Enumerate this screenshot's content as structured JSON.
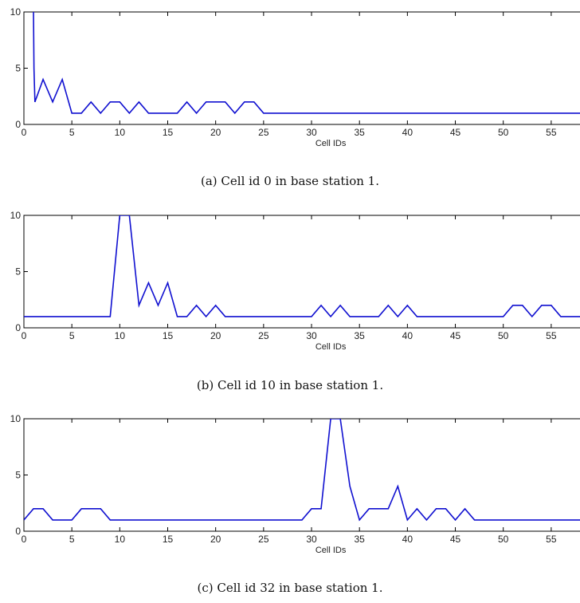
{
  "chart_data": [
    {
      "type": "line",
      "caption": "(a)  Cell id 0 in base station 1.",
      "xlabel": "Cell IDs",
      "ylabel": "",
      "xlim": [
        0,
        59
      ],
      "ylim": [
        0,
        10
      ],
      "xticks": [
        0,
        5,
        10,
        15,
        20,
        25,
        30,
        35,
        40,
        45,
        50,
        55
      ],
      "yticks": [
        0,
        5,
        10
      ],
      "color": "#1010d0",
      "x": [
        1,
        1.05,
        1.15,
        2,
        3,
        4,
        5,
        6,
        7,
        8,
        9,
        10,
        11,
        12,
        13,
        14,
        15,
        16,
        17,
        18,
        19,
        20,
        21,
        22,
        23,
        24,
        25,
        26,
        27,
        28,
        29,
        30,
        31,
        32,
        33,
        34,
        35,
        36,
        37,
        38,
        39,
        40,
        41,
        42,
        43,
        44,
        45,
        46,
        47,
        48,
        49,
        50,
        51,
        52,
        53,
        54,
        55,
        56,
        57,
        58,
        59
      ],
      "y": [
        10,
        5,
        2,
        4,
        2,
        4,
        1,
        1,
        2,
        1,
        2,
        2,
        1,
        2,
        1,
        1,
        1,
        1,
        2,
        1,
        2,
        2,
        2,
        1,
        2,
        2,
        1,
        1,
        1,
        1,
        1,
        1,
        1,
        1,
        1,
        1,
        1,
        1,
        1,
        1,
        1,
        1,
        1,
        1,
        1,
        1,
        1,
        1,
        1,
        1,
        1,
        1,
        1,
        1,
        1,
        1,
        1,
        1,
        1,
        1,
        1
      ]
    },
    {
      "type": "line",
      "caption": "(b)  Cell id 10 in base station 1.",
      "xlabel": "Cell IDs",
      "ylabel": "",
      "xlim": [
        0,
        59
      ],
      "ylim": [
        0,
        10
      ],
      "xticks": [
        0,
        5,
        10,
        15,
        20,
        25,
        30,
        35,
        40,
        45,
        50,
        55
      ],
      "yticks": [
        0,
        5,
        10
      ],
      "color": "#1010d0",
      "x": [
        0,
        1,
        2,
        3,
        4,
        5,
        6,
        7,
        8,
        9,
        10,
        11,
        12,
        13,
        14,
        15,
        16,
        17,
        18,
        19,
        20,
        21,
        22,
        23,
        24,
        25,
        26,
        27,
        28,
        29,
        30,
        31,
        32,
        33,
        34,
        35,
        36,
        37,
        38,
        39,
        40,
        41,
        42,
        43,
        44,
        45,
        46,
        47,
        48,
        49,
        50,
        51,
        52,
        53,
        54,
        55,
        56,
        57,
        58,
        59
      ],
      "y": [
        1,
        1,
        1,
        1,
        1,
        1,
        1,
        1,
        1,
        1,
        10,
        10,
        2,
        4,
        2,
        4,
        1,
        1,
        2,
        1,
        2,
        1,
        1,
        1,
        1,
        1,
        1,
        1,
        1,
        1,
        1,
        2,
        1,
        2,
        1,
        1,
        1,
        1,
        2,
        1,
        2,
        1,
        1,
        1,
        1,
        1,
        1,
        1,
        1,
        1,
        1,
        2,
        2,
        1,
        2,
        2,
        1,
        1,
        1,
        1
      ]
    },
    {
      "type": "line",
      "caption": "(c)  Cell id 32 in base station 1.",
      "xlabel": "Cell IDs",
      "ylabel": "",
      "xlim": [
        0,
        59
      ],
      "ylim": [
        0,
        10
      ],
      "xticks": [
        0,
        5,
        10,
        15,
        20,
        25,
        30,
        35,
        40,
        45,
        50,
        55
      ],
      "yticks": [
        0,
        5,
        10
      ],
      "color": "#1010d0",
      "x": [
        0,
        1,
        2,
        3,
        4,
        5,
        6,
        7,
        8,
        9,
        10,
        11,
        12,
        13,
        14,
        15,
        16,
        17,
        18,
        19,
        20,
        21,
        22,
        23,
        24,
        25,
        26,
        27,
        28,
        29,
        30,
        31,
        32,
        33,
        34,
        35,
        36,
        37,
        38,
        39,
        40,
        41,
        42,
        43,
        44,
        45,
        46,
        47,
        48,
        49,
        50,
        51,
        52,
        53,
        54,
        55,
        56,
        57,
        58,
        59
      ],
      "y": [
        1,
        2,
        2,
        1,
        1,
        1,
        2,
        2,
        2,
        1,
        1,
        1,
        1,
        1,
        1,
        1,
        1,
        1,
        1,
        1,
        1,
        1,
        1,
        1,
        1,
        1,
        1,
        1,
        1,
        1,
        2,
        2,
        10,
        10,
        4,
        1,
        2,
        2,
        2,
        4,
        1,
        2,
        1,
        2,
        2,
        1,
        2,
        1,
        1,
        1,
        1,
        1,
        1,
        1,
        1,
        1,
        1,
        1,
        1,
        1
      ]
    }
  ]
}
